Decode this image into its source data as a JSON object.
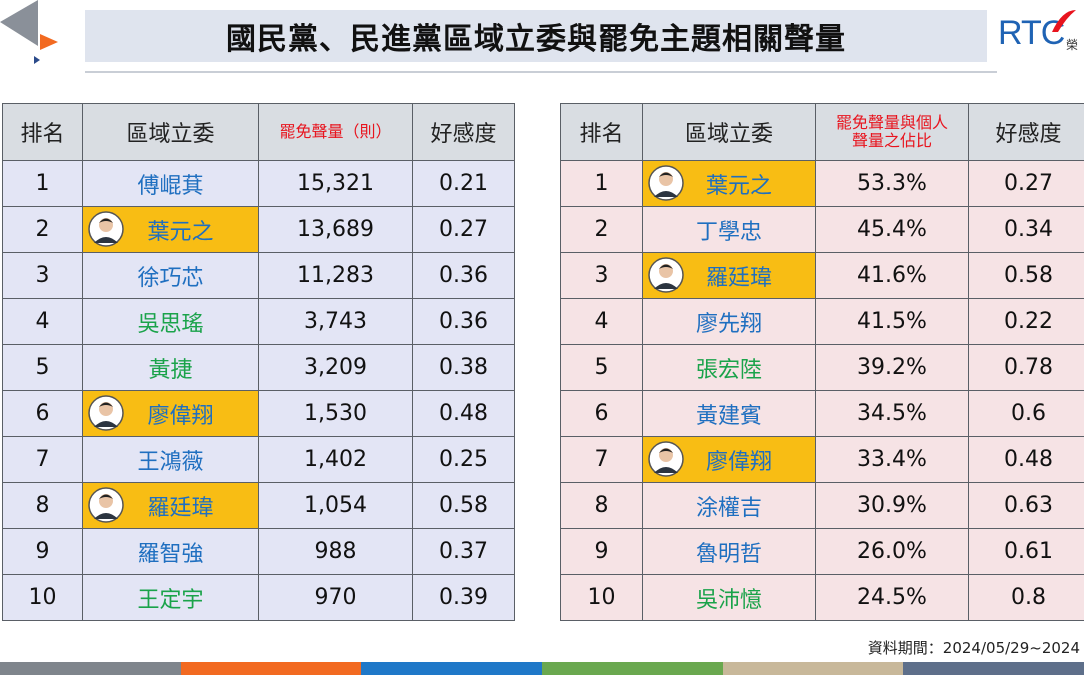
{
  "header": {
    "title": "國民黨、民進黨區域立委與罷免主題相關聲量",
    "logo": "RTC",
    "logo_sub": "榮"
  },
  "left_table": {
    "columns": [
      "排名",
      "區域立委",
      "罷免聲量（則）",
      "好感度"
    ],
    "header_colors": [
      "#222222",
      "#222222",
      "#e8141e",
      "#222222"
    ],
    "row_color": "#e3e5f5",
    "rows": [
      {
        "cells": [
          "1",
          "傅崐萁",
          "15,321",
          "0.21"
        ],
        "name_color": "#1f6fc0",
        "highlight": false
      },
      {
        "cells": [
          "2",
          "葉元之",
          "13,689",
          "0.27"
        ],
        "name_color": "#1f6fc0",
        "highlight": true
      },
      {
        "cells": [
          "3",
          "徐巧芯",
          "11,283",
          "0.36"
        ],
        "name_color": "#1f6fc0",
        "highlight": false
      },
      {
        "cells": [
          "4",
          "吳思瑤",
          "3,743",
          "0.36"
        ],
        "name_color": "#1aa34a",
        "highlight": false
      },
      {
        "cells": [
          "5",
          "黃捷",
          "3,209",
          "0.38"
        ],
        "name_color": "#1aa34a",
        "highlight": false
      },
      {
        "cells": [
          "6",
          "廖偉翔",
          "1,530",
          "0.48"
        ],
        "name_color": "#1f6fc0",
        "highlight": true
      },
      {
        "cells": [
          "7",
          "王鴻薇",
          "1,402",
          "0.25"
        ],
        "name_color": "#1f6fc0",
        "highlight": false
      },
      {
        "cells": [
          "8",
          "羅廷瑋",
          "1,054",
          "0.58"
        ],
        "name_color": "#1f6fc0",
        "highlight": true
      },
      {
        "cells": [
          "9",
          "羅智強",
          "988",
          "0.37"
        ],
        "name_color": "#1f6fc0",
        "highlight": false
      },
      {
        "cells": [
          "10",
          "王定宇",
          "970",
          "0.39"
        ],
        "name_color": "#1aa34a",
        "highlight": false
      }
    ]
  },
  "right_table": {
    "columns": [
      "排名",
      "區域立委",
      "罷免聲量與個人聲量之佔比",
      "好感度"
    ],
    "header_colors": [
      "#222222",
      "#222222",
      "#e8141e",
      "#222222"
    ],
    "row_color": "#f6e3e5",
    "rows": [
      {
        "cells": [
          "1",
          "葉元之",
          "53.3%",
          "0.27"
        ],
        "name_color": "#1f6fc0",
        "highlight": true
      },
      {
        "cells": [
          "2",
          "丁學忠",
          "45.4%",
          "0.34"
        ],
        "name_color": "#1f6fc0",
        "highlight": false
      },
      {
        "cells": [
          "3",
          "羅廷瑋",
          "41.6%",
          "0.58"
        ],
        "name_color": "#1f6fc0",
        "highlight": true
      },
      {
        "cells": [
          "4",
          "廖先翔",
          "41.5%",
          "0.22"
        ],
        "name_color": "#1f6fc0",
        "highlight": false
      },
      {
        "cells": [
          "5",
          "張宏陸",
          "39.2%",
          "0.78"
        ],
        "name_color": "#1aa34a",
        "highlight": false
      },
      {
        "cells": [
          "6",
          "黃建賓",
          "34.5%",
          "0.6"
        ],
        "name_color": "#1f6fc0",
        "highlight": false
      },
      {
        "cells": [
          "7",
          "廖偉翔",
          "33.4%",
          "0.48"
        ],
        "name_color": "#1f6fc0",
        "highlight": true
      },
      {
        "cells": [
          "8",
          "涂權吉",
          "30.9%",
          "0.63"
        ],
        "name_color": "#1f6fc0",
        "highlight": false
      },
      {
        "cells": [
          "9",
          "魯明哲",
          "26.0%",
          "0.61"
        ],
        "name_color": "#1f6fc0",
        "highlight": false
      },
      {
        "cells": [
          "10",
          "吳沛憶",
          "24.5%",
          "0.8"
        ],
        "name_color": "#1aa34a",
        "highlight": false
      }
    ]
  },
  "footer": "資料期間：2024/05/29~2024"
}
